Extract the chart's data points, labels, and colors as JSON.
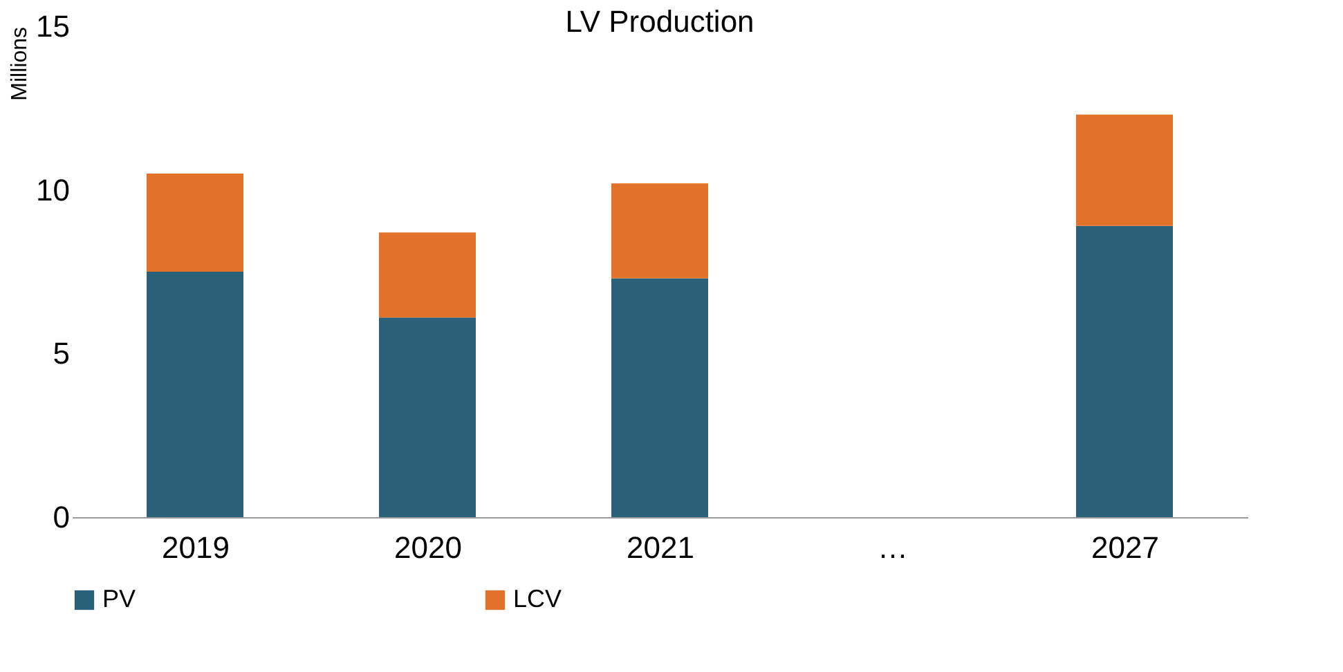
{
  "chart_data": {
    "type": "bar",
    "title": "LV Production",
    "ylabel": "Millions",
    "categories": [
      "2019",
      "2020",
      "2021",
      "…",
      "2027"
    ],
    "series": [
      {
        "name": "PV",
        "color": "#2b6079",
        "values": [
          7.5,
          6.1,
          7.3,
          null,
          8.9
        ]
      },
      {
        "name": "LCV",
        "color": "#e2712a",
        "values": [
          3.0,
          2.6,
          2.9,
          null,
          3.4
        ]
      }
    ],
    "stacked": true,
    "ylim": [
      0,
      15
    ],
    "yticks": [
      0,
      5,
      10,
      15
    ],
    "grid": false,
    "legend": "bottom"
  }
}
